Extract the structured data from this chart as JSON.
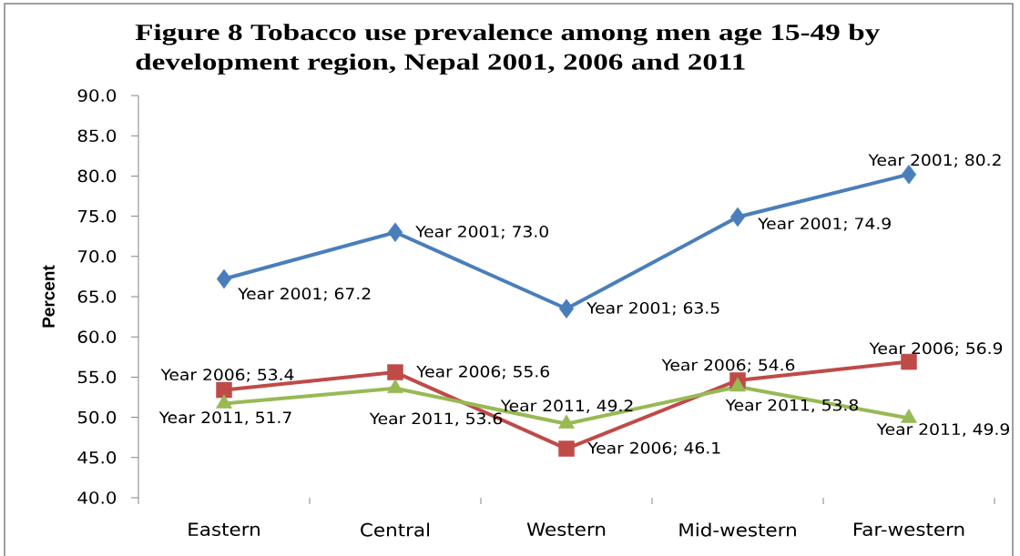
{
  "chart_data": {
    "type": "line",
    "title": "Figure 8 Tobacco use prevalence among men age 15-49 by development region, Nepal 2001, 2006 and 2011",
    "ylabel": "Percent",
    "categories": [
      "Eastern",
      "Central",
      "Western",
      "Mid-western",
      "Far-western"
    ],
    "series": [
      {
        "color": "#4a7ebb",
        "marker": "diamond",
        "values": [
          67.2,
          73.0,
          63.5,
          74.9,
          80.2
        ],
        "value_labels": [
          "Year 2001; 67.2",
          "Year 2001; 73.0",
          "Year 2001; 63.5",
          "Year 2001; 74.9",
          "Year 2001; 80.2"
        ]
      },
      {
        "color": "#be4b48",
        "marker": "square",
        "values": [
          53.4,
          55.6,
          46.1,
          54.6,
          56.9
        ],
        "value_labels": [
          "Year 2006; 53.4",
          "Year 2006; 55.6",
          "Year 2006; 46.1",
          "Year 2006; 54.6",
          "Year 2006; 56.9"
        ]
      },
      {
        "color": "#98b954",
        "marker": "triangle",
        "values": [
          51.7,
          53.6,
          49.2,
          53.8,
          49.9
        ],
        "value_labels": [
          "Year 2011, 51.7",
          "Year 2011, 53.6",
          "Year 2011, 49.2",
          "Year 2011, 53.8",
          "Year 2011, 49.9"
        ]
      }
    ],
    "ylim": [
      40,
      90
    ],
    "yticks": [
      {
        "value": 40,
        "label": "40.0"
      },
      {
        "value": 45,
        "label": "45.0"
      },
      {
        "value": 50,
        "label": "50.0"
      },
      {
        "value": 55,
        "label": "55.0"
      },
      {
        "value": 60,
        "label": "60.0"
      },
      {
        "value": 65,
        "label": "65.0"
      },
      {
        "value": 70,
        "label": "70.0"
      },
      {
        "value": 75,
        "label": "75.0"
      },
      {
        "value": 80,
        "label": "80.0"
      },
      {
        "value": 85,
        "label": "85.0"
      },
      {
        "value": 90,
        "label": "90.0"
      }
    ],
    "line_style": "solid"
  }
}
